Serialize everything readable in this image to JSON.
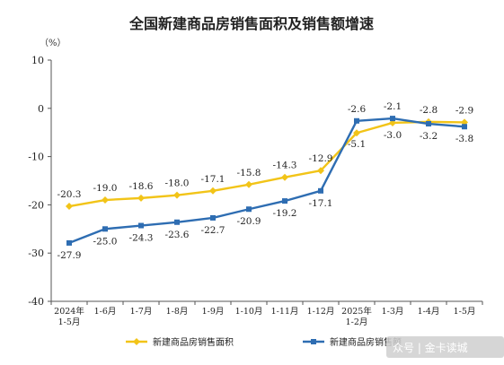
{
  "chart_data": {
    "type": "line",
    "title": "全国新建商品房销售面积及销售额增速",
    "unit": "（%）",
    "categories": [
      [
        "2024年",
        "1-5月"
      ],
      [
        "1-6月"
      ],
      [
        "1-7月"
      ],
      [
        "1-8月"
      ],
      [
        "1-9月"
      ],
      [
        "1-10月"
      ],
      [
        "1-11月"
      ],
      [
        "1-12月"
      ],
      [
        "2025年",
        "1-2月"
      ],
      [
        "1-3月"
      ],
      [
        "1-4月"
      ],
      [
        "1-5月"
      ]
    ],
    "ylim": [
      -40,
      10
    ],
    "yticks": [
      10,
      0,
      -10,
      -20,
      -30,
      -40
    ],
    "grid": false,
    "legend_position": "bottom",
    "series": [
      {
        "name": "新建商品房销售面积",
        "color": "#f2c418",
        "values": [
          -20.3,
          -19.0,
          -18.6,
          -18.0,
          -17.1,
          -15.8,
          -14.3,
          -12.9,
          -5.1,
          -3.0,
          -2.8,
          -2.9
        ],
        "labels": [
          "-20.3",
          "-19.0",
          "-18.6",
          "-18.0",
          "-17.1",
          "-15.8",
          "-14.3",
          "-12.9",
          "-5.1",
          "-3.0",
          "-2.8",
          "-2.9"
        ]
      },
      {
        "name": "新建商品房销售额",
        "color": "#2e6db2",
        "values": [
          -27.9,
          -25.0,
          -24.3,
          -23.6,
          -22.7,
          -20.9,
          -19.2,
          -17.1,
          -2.6,
          -2.1,
          -3.2,
          -3.8
        ],
        "labels": [
          "-27.9",
          "-25.0",
          "-24.3",
          "-23.6",
          "-22.7",
          "-20.9",
          "-19.2",
          "-17.1",
          "-2.6",
          "-2.1",
          "-3.2",
          "-3.8"
        ]
      }
    ]
  },
  "watermark": {
    "text": "众号 | 金卡读城"
  }
}
